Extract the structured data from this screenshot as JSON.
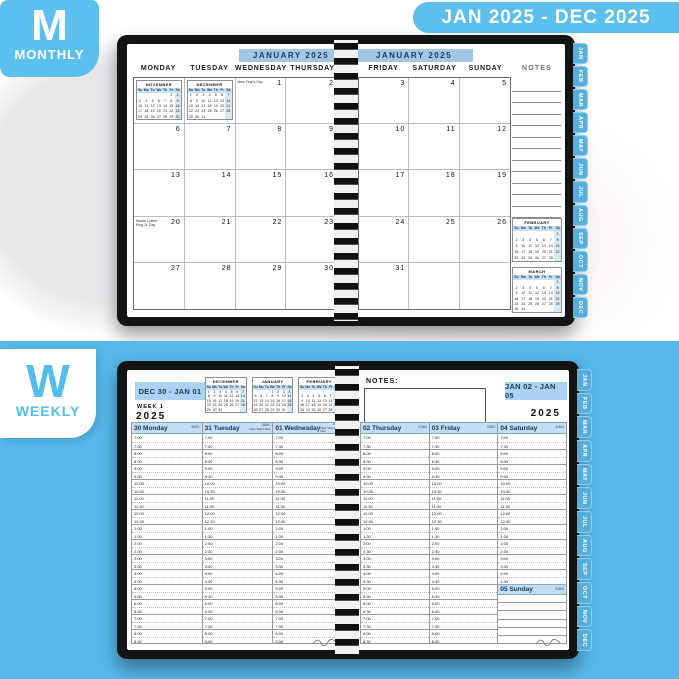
{
  "colors": {
    "brand_blue": "#5cc0ee",
    "section_blue": "#57b8e9",
    "tab_blue": "#56aedd",
    "bar_blue": "#a3c7e3",
    "weekly_header_blue": "#c3ddf3",
    "navy": "#17395f"
  },
  "top_badge": {
    "letter": "M",
    "label": "MONTHLY"
  },
  "top_banner": "JAN 2025 - DEC 2025",
  "bottom_badge": {
    "letter": "W",
    "label": "WEEKLY"
  },
  "month_tabs": [
    "JAN",
    "FEB",
    "MAR",
    "APR",
    "MAY",
    "JUN",
    "JUL",
    "AUG",
    "SEP",
    "OCT",
    "NOV",
    "DEC"
  ],
  "mini_calendars": {
    "NOVEMBER": {
      "title": "NOVEMBER",
      "day_row": [
        "Su",
        "Mo",
        "Tu",
        "We",
        "Th",
        "Fr",
        "Sa"
      ],
      "weeks": [
        [
          "",
          "",
          "",
          "",
          "",
          "1",
          "2"
        ],
        [
          "3",
          "4",
          "5",
          "6",
          "7",
          "8",
          "9"
        ],
        [
          "10",
          "11",
          "12",
          "13",
          "14",
          "15",
          "16"
        ],
        [
          "17",
          "18",
          "19",
          "20",
          "21",
          "22",
          "23"
        ],
        [
          "24",
          "25",
          "26",
          "27",
          "28",
          "29",
          "30"
        ]
      ]
    },
    "DECEMBER": {
      "title": "DECEMBER",
      "day_row": [
        "Su",
        "Mo",
        "Tu",
        "We",
        "Th",
        "Fr",
        "Sa"
      ],
      "weeks": [
        [
          "1",
          "2",
          "3",
          "4",
          "5",
          "6",
          "7"
        ],
        [
          "8",
          "9",
          "10",
          "11",
          "12",
          "13",
          "14"
        ],
        [
          "15",
          "16",
          "17",
          "18",
          "19",
          "20",
          "21"
        ],
        [
          "22",
          "23",
          "24",
          "25",
          "26",
          "27",
          "28"
        ],
        [
          "29",
          "30",
          "31",
          "",
          "",
          "",
          ""
        ]
      ]
    },
    "JANUARY": {
      "title": "JANUARY",
      "day_row": [
        "Su",
        "Mo",
        "Tu",
        "We",
        "Th",
        "Fr",
        "Sa"
      ],
      "weeks": [
        [
          "",
          "",
          "",
          "1",
          "2",
          "3",
          "4"
        ],
        [
          "5",
          "6",
          "7",
          "8",
          "9",
          "10",
          "11"
        ],
        [
          "12",
          "13",
          "14",
          "15",
          "16",
          "17",
          "18"
        ],
        [
          "19",
          "20",
          "21",
          "22",
          "23",
          "24",
          "25"
        ],
        [
          "26",
          "27",
          "28",
          "29",
          "30",
          "31",
          ""
        ]
      ]
    },
    "FEBRUARY": {
      "title": "FEBRUARY",
      "day_row": [
        "Su",
        "Mo",
        "Tu",
        "We",
        "Th",
        "Fr",
        "Sa"
      ],
      "weeks": [
        [
          "",
          "",
          "",
          "",
          "",
          "",
          "1"
        ],
        [
          "2",
          "3",
          "4",
          "5",
          "6",
          "7",
          "8"
        ],
        [
          "9",
          "10",
          "11",
          "12",
          "13",
          "14",
          "15"
        ],
        [
          "16",
          "17",
          "18",
          "19",
          "20",
          "21",
          "22"
        ],
        [
          "23",
          "24",
          "25",
          "26",
          "27",
          "28",
          ""
        ]
      ]
    },
    "MARCH": {
      "title": "MARCH",
      "day_row": [
        "Su",
        "Mo",
        "Tu",
        "We",
        "Th",
        "Fr",
        "Sa"
      ],
      "weeks": [
        [
          "",
          "",
          "",
          "",
          "",
          "",
          "1"
        ],
        [
          "2",
          "3",
          "4",
          "5",
          "6",
          "7",
          "8"
        ],
        [
          "9",
          "10",
          "11",
          "12",
          "13",
          "14",
          "15"
        ],
        [
          "16",
          "17",
          "18",
          "19",
          "20",
          "21",
          "22"
        ],
        [
          "23",
          "24",
          "25",
          "26",
          "27",
          "28",
          "29"
        ],
        [
          "30",
          "31",
          "",
          "",
          "",
          "",
          ""
        ]
      ]
    }
  },
  "monthly_spread": {
    "left": {
      "title": "JANUARY 2025",
      "day_headers": [
        "MONDAY",
        "TUESDAY",
        "WEDNESDAY",
        "THURSDAY"
      ],
      "cells": [
        [
          {
            "mini": "NOVEMBER"
          },
          {
            "mini": "DECEMBER"
          },
          {
            "date": "1",
            "holiday": "New Year's Day"
          },
          {
            "date": "2"
          }
        ],
        [
          {
            "date": "6"
          },
          {
            "date": "7"
          },
          {
            "date": "8"
          },
          {
            "date": "9"
          }
        ],
        [
          {
            "date": "13"
          },
          {
            "date": "14"
          },
          {
            "date": "15"
          },
          {
            "date": "16"
          }
        ],
        [
          {
            "date": "20",
            "holiday": "Martin Luther King Jr. Day"
          },
          {
            "date": "21"
          },
          {
            "date": "22"
          },
          {
            "date": "23"
          }
        ],
        [
          {
            "date": "27"
          },
          {
            "date": "28"
          },
          {
            "date": "29"
          },
          {
            "date": "30"
          }
        ]
      ]
    },
    "right": {
      "title": "JANUARY 2025",
      "day_headers": [
        "FRIDAY",
        "SATURDAY",
        "SUNDAY"
      ],
      "notes_header": "NOTES",
      "cells": [
        [
          {
            "date": "3"
          },
          {
            "date": "4"
          },
          {
            "date": "5"
          }
        ],
        [
          {
            "date": "10"
          },
          {
            "date": "11"
          },
          {
            "date": "12"
          }
        ],
        [
          {
            "date": "17"
          },
          {
            "date": "18"
          },
          {
            "date": "19"
          }
        ],
        [
          {
            "date": "24"
          },
          {
            "date": "25"
          },
          {
            "date": "26"
          }
        ],
        [
          {
            "date": "31"
          },
          {},
          {}
        ]
      ],
      "notes_minis": [
        "FEBRUARY",
        "MARCH"
      ],
      "notes_line_count": 12
    }
  },
  "weekly_spread": {
    "time_slots": [
      "7:00",
      "7:30",
      "8:00",
      "8:30",
      "9:00",
      "9:30",
      "10:00",
      "10:30",
      "11:00",
      "11:30",
      "12:00",
      "12:30",
      "1:00",
      "1:30",
      "2:00",
      "2:30",
      "3:00",
      "3:30",
      "4:00",
      "4:30",
      "5:00",
      "5:30",
      "6:00",
      "6:30",
      "7:00",
      "7:30",
      "8:00",
      "8:30"
    ],
    "left": {
      "range": "DEC 30 - JAN 01",
      "week_label": "WEEK 1",
      "year": "2025",
      "minis": [
        "DECEMBER",
        "JANUARY",
        "FEBRUARY"
      ],
      "days": [
        {
          "title": "30 Monday",
          "corner": "365/1"
        },
        {
          "title": "31 Tuesday",
          "corner": "366/0",
          "holiday": "New Year's Eve"
        },
        {
          "title": "01 Wednesday",
          "corner": "1/364",
          "holiday": "New Year's Day"
        }
      ]
    },
    "right": {
      "notes_label": "NOTES:",
      "range": "JAN 02 - JAN 05",
      "year": "2025",
      "days": [
        {
          "title": "02 Thursday",
          "corner": "2/363"
        },
        {
          "title": "03 Friday",
          "corner": "3/362"
        },
        {
          "title": "04 Saturday",
          "corner": "4/361",
          "slots": 20
        }
      ],
      "sunday": {
        "title": "05 Sunday",
        "corner": "5/360",
        "lines": 6
      }
    }
  }
}
